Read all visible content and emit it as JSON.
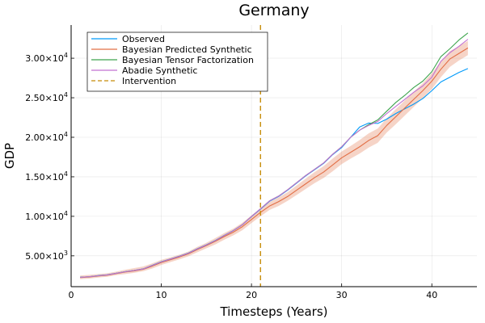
{
  "chart_data": {
    "type": "line",
    "title": "Germany",
    "xlabel": "Timesteps (Years)",
    "ylabel": "GDP",
    "xlim": [
      0,
      45
    ],
    "ylim": [
      1100,
      34200
    ],
    "grid": true,
    "legend_position": "top-left",
    "x_ticks": [
      0,
      10,
      20,
      30,
      40
    ],
    "x_tick_labels": [
      "0",
      "10",
      "20",
      "30",
      "40"
    ],
    "y_ticks": [
      5000,
      10000,
      15000,
      20000,
      25000,
      30000
    ],
    "y_tick_labels": [
      {
        "mantissa": "5.00×10",
        "exp": "3"
      },
      {
        "mantissa": "1.00×10",
        "exp": "4"
      },
      {
        "mantissa": "1.50×10",
        "exp": "4"
      },
      {
        "mantissa": "2.00×10",
        "exp": "4"
      },
      {
        "mantissa": "2.50×10",
        "exp": "4"
      },
      {
        "mantissa": "3.00×10",
        "exp": "4"
      }
    ],
    "x": [
      1,
      2,
      3,
      4,
      5,
      6,
      7,
      8,
      9,
      10,
      11,
      12,
      13,
      14,
      15,
      16,
      17,
      18,
      19,
      20,
      21,
      22,
      23,
      24,
      25,
      26,
      27,
      28,
      29,
      30,
      31,
      32,
      33,
      34,
      35,
      36,
      37,
      38,
      39,
      40,
      41,
      42,
      43,
      44
    ],
    "series": [
      {
        "name": "Observed",
        "color": "#009AFA",
        "values": [
          2300,
          2350,
          2500,
          2600,
          2800,
          3000,
          3150,
          3350,
          3800,
          4250,
          4600,
          4950,
          5350,
          5900,
          6400,
          6950,
          7600,
          8200,
          8950,
          9950,
          10900,
          11900,
          12500,
          13300,
          14200,
          15100,
          15900,
          16700,
          17800,
          18700,
          20000,
          21300,
          21800,
          21750,
          22300,
          23000,
          23600,
          24200,
          24900,
          25900,
          27000,
          27600,
          28200,
          28700
        ]
      },
      {
        "name": "Bayesian Predicted Synthetic",
        "color": "#E26F46",
        "values": [
          2250,
          2320,
          2450,
          2550,
          2750,
          2950,
          3100,
          3300,
          3700,
          4150,
          4500,
          4850,
          5250,
          5800,
          6300,
          6850,
          7450,
          8000,
          8700,
          9600,
          10500,
          11300,
          11850,
          12500,
          13300,
          14100,
          14900,
          15600,
          16500,
          17400,
          18100,
          18800,
          19600,
          20200,
          21500,
          22600,
          23700,
          24800,
          25900,
          27100,
          28600,
          29900,
          30600,
          31300
        ],
        "band_low": [
          2050,
          2120,
          2250,
          2350,
          2550,
          2700,
          2850,
          3050,
          3400,
          3850,
          4200,
          4550,
          4950,
          5450,
          5950,
          6450,
          7050,
          7600,
          8250,
          9150,
          10000,
          10800,
          11300,
          11950,
          12700,
          13450,
          14200,
          14850,
          15700,
          16600,
          17300,
          17950,
          18700,
          19300,
          20600,
          21650,
          22750,
          23850,
          24950,
          26100,
          27600,
          28900,
          29700,
          30400
        ],
        "band_high": [
          2500,
          2600,
          2700,
          2800,
          3000,
          3250,
          3450,
          3650,
          4050,
          4500,
          4800,
          5150,
          5550,
          6150,
          6650,
          7250,
          7900,
          8450,
          9200,
          10100,
          11000,
          11800,
          12400,
          13050,
          13900,
          14750,
          15600,
          16350,
          17300,
          18200,
          18900,
          19650,
          20500,
          21100,
          22400,
          23550,
          24650,
          25750,
          26850,
          28100,
          29600,
          30900,
          31500,
          32200
        ]
      },
      {
        "name": "Bayesian Tensor Factorization",
        "color": "#3DA44D",
        "values": [
          2280,
          2360,
          2480,
          2590,
          2790,
          2990,
          3150,
          3340,
          3780,
          4230,
          4580,
          4930,
          5330,
          5880,
          6380,
          6930,
          7580,
          8190,
          8950,
          9980,
          10950,
          11950,
          12550,
          13350,
          14250,
          15150,
          15950,
          16750,
          17850,
          18800,
          20000,
          20900,
          21600,
          22200,
          23300,
          24400,
          25300,
          26300,
          27100,
          28300,
          30200,
          31200,
          32300,
          33200
        ]
      },
      {
        "name": "Abadie Synthetic",
        "color": "#C271D2",
        "values": [
          2280,
          2360,
          2480,
          2590,
          2790,
          2990,
          3150,
          3340,
          3780,
          4230,
          4580,
          4930,
          5330,
          5880,
          6380,
          6930,
          7580,
          8190,
          8950,
          9980,
          10950,
          11950,
          12550,
          13350,
          14250,
          15150,
          15950,
          16750,
          17850,
          18800,
          20000,
          20900,
          21500,
          22000,
          23000,
          23900,
          24800,
          25700,
          26500,
          27600,
          29600,
          30700,
          31500,
          32400
        ]
      }
    ],
    "intervention": {
      "name": "Intervention",
      "x": 21,
      "color": "#C68C08"
    }
  }
}
